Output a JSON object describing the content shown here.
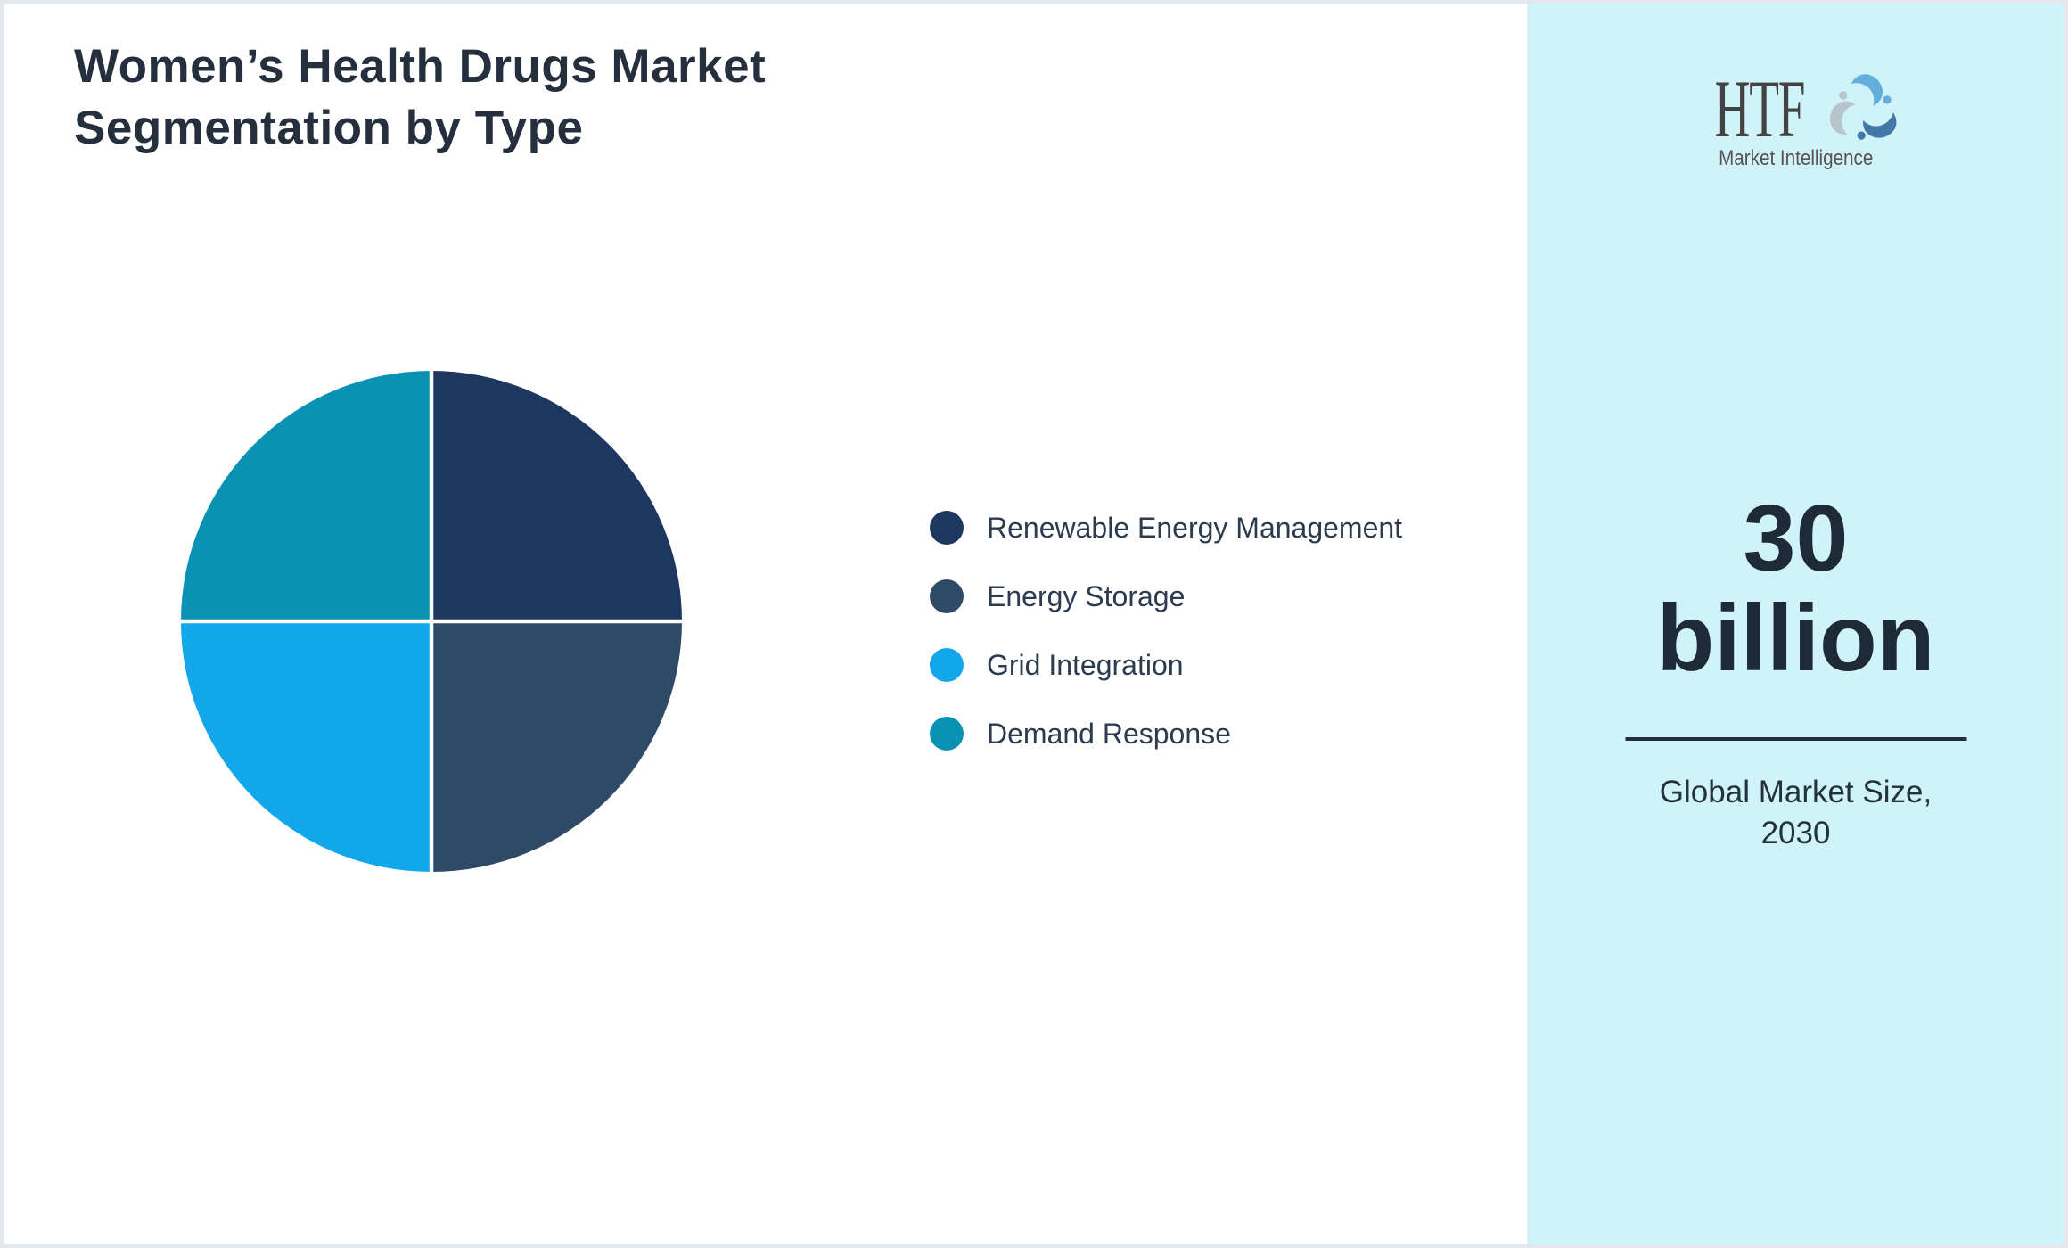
{
  "page": {
    "title": "Women’s Health Drugs Market\nSegmentation by Type"
  },
  "chart_data": {
    "type": "pie",
    "title": "Women’s Health Drugs Market Segmentation by Type",
    "labels": [
      "Renewable Energy Management",
      "Energy Storage",
      "Grid Integration",
      "Demand Response"
    ],
    "values": [
      25,
      25,
      25,
      25
    ],
    "colors": [
      "#1d3760",
      "#2e4a66",
      "#12a7ea",
      "#0a92b5"
    ],
    "start_angle_deg": 0,
    "direction": "clockwise",
    "slice_separator_color": "#ffffff",
    "legend_position": "right"
  },
  "sidebar": {
    "background": "#d0f3fa",
    "logo": {
      "brand": "HTF",
      "tagline": "Market Intelligence",
      "icon": "dolphin-swirl-icon",
      "icon_colors": [
        "#63aedb",
        "#4278a7",
        "#b8c4cc"
      ],
      "text_color": "#424242"
    },
    "metric_value": "30\nbillion",
    "caption": "Global Market Size,\n2030"
  }
}
